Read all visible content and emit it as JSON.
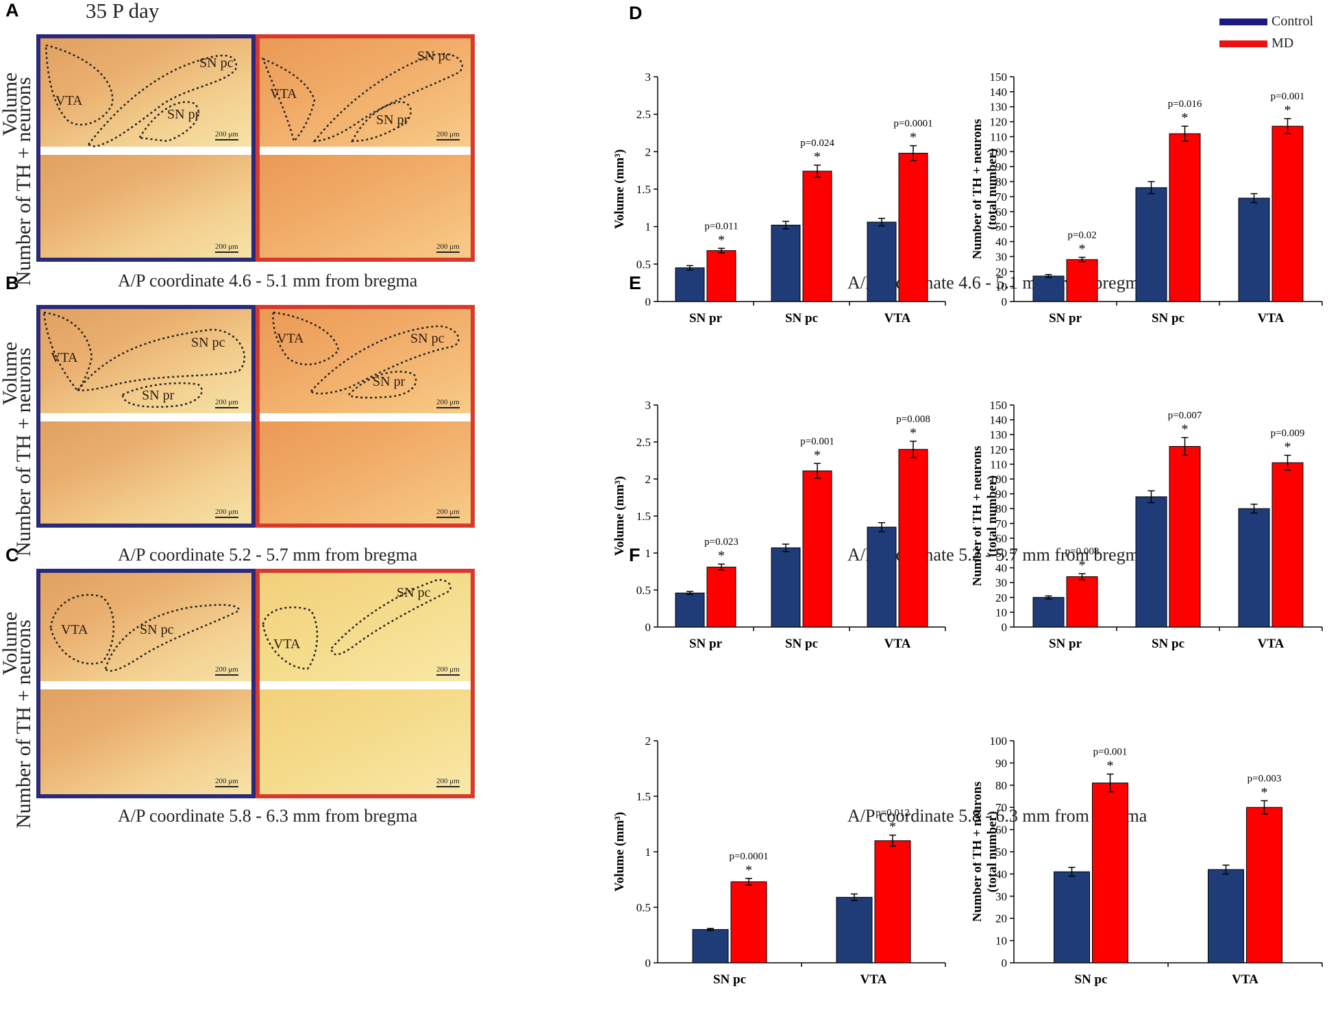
{
  "figure": {
    "panel_A_label": "A",
    "panel_B_label": "B",
    "panel_C_label": "C",
    "panel_D_label": "D",
    "panel_E_label": "E",
    "panel_F_label": "F",
    "day_label": "35 P day",
    "row_label_volume": "Volume",
    "row_label_neurons": "Number of TH + neurons",
    "scale_bar": "200 μm",
    "coord_A": "A/P coordinate 4.6 - 5.1 mm from bregma",
    "coord_B": "A/P coordinate 5.2 - 5.7 mm from bregma",
    "coord_C": "A/P coordinate 5.8 - 6.3 mm from bregma",
    "region_vta": "VTA",
    "region_snpc": "SN pc",
    "region_snpr": "SN pr"
  },
  "legend": {
    "control": "Control",
    "md": "MD",
    "control_color": "#1f3c78",
    "md_color": "#ff0000"
  },
  "chart_data": [
    {
      "id": "D-volume",
      "type": "bar",
      "ylabel": "Volume (mm³)",
      "ylim": [
        0,
        3
      ],
      "yticks": [
        0,
        0.5,
        1,
        1.5,
        2,
        2.5,
        3
      ],
      "categories": [
        "SN pr",
        "SN pc",
        "VTA"
      ],
      "series": [
        {
          "name": "Control",
          "values": [
            0.45,
            1.02,
            1.06
          ],
          "errors": [
            0.03,
            0.05,
            0.05
          ]
        },
        {
          "name": "MD",
          "values": [
            0.68,
            1.74,
            1.98
          ],
          "errors": [
            0.03,
            0.08,
            0.1
          ]
        }
      ],
      "annotations": [
        "p=0.011",
        "p=0.024",
        "p=0.0001"
      ]
    },
    {
      "id": "D-neurons",
      "type": "bar",
      "ylabel": "Number of TH + neurons (total number)",
      "ylim": [
        0,
        150
      ],
      "yticks": [
        0,
        10,
        20,
        30,
        40,
        50,
        60,
        70,
        80,
        90,
        100,
        110,
        120,
        130,
        140,
        150
      ],
      "categories": [
        "SN pr",
        "SN pc",
        "VTA"
      ],
      "series": [
        {
          "name": "Control",
          "values": [
            17,
            76,
            69
          ],
          "errors": [
            1,
            4,
            3
          ]
        },
        {
          "name": "MD",
          "values": [
            28,
            112,
            117
          ],
          "errors": [
            1.5,
            5,
            5
          ]
        }
      ],
      "annotations": [
        "p=0.02",
        "p=0.016",
        "p=0.001"
      ]
    },
    {
      "id": "E-volume",
      "type": "bar",
      "ylabel": "Volume (mm³)",
      "ylim": [
        0,
        3
      ],
      "yticks": [
        0,
        0.5,
        1,
        1.5,
        2,
        2.5,
        3
      ],
      "categories": [
        "SN pr",
        "SN pc",
        "VTA"
      ],
      "series": [
        {
          "name": "Control",
          "values": [
            0.46,
            1.07,
            1.35
          ],
          "errors": [
            0.02,
            0.05,
            0.06
          ]
        },
        {
          "name": "MD",
          "values": [
            0.81,
            2.11,
            2.4
          ],
          "errors": [
            0.04,
            0.1,
            0.11
          ]
        }
      ],
      "annotations": [
        "p=0.023",
        "p=0.001",
        "p=0.008"
      ]
    },
    {
      "id": "E-neurons",
      "type": "bar",
      "ylabel": "Number of TH + neurons (total number)",
      "ylim": [
        0,
        150
      ],
      "yticks": [
        0,
        10,
        20,
        30,
        40,
        50,
        60,
        70,
        80,
        90,
        100,
        110,
        120,
        130,
        140,
        150
      ],
      "categories": [
        "SN pr",
        "SN pc",
        "VTA"
      ],
      "series": [
        {
          "name": "Control",
          "values": [
            20,
            88,
            80
          ],
          "errors": [
            1,
            4,
            3
          ]
        },
        {
          "name": "MD",
          "values": [
            34,
            122,
            111
          ],
          "errors": [
            2,
            6,
            5
          ]
        }
      ],
      "annotations": [
        "p=0.008",
        "p=0.007",
        "p=0.009"
      ]
    },
    {
      "id": "F-volume",
      "type": "bar",
      "ylabel": "Volume (mm³)",
      "ylim": [
        0,
        2
      ],
      "yticks": [
        0,
        0.5,
        1,
        1.5,
        2
      ],
      "categories": [
        "SN pc",
        "VTA"
      ],
      "series": [
        {
          "name": "Control",
          "values": [
            0.3,
            0.59
          ],
          "errors": [
            0.01,
            0.03
          ]
        },
        {
          "name": "MD",
          "values": [
            0.73,
            1.1
          ],
          "errors": [
            0.03,
            0.05
          ]
        }
      ],
      "annotations": [
        "p=0.0001",
        "p=0.012"
      ]
    },
    {
      "id": "F-neurons",
      "type": "bar",
      "ylabel": "Number of TH + neurons (total number)",
      "ylim": [
        0,
        100
      ],
      "yticks": [
        0,
        10,
        20,
        30,
        40,
        50,
        60,
        70,
        80,
        90,
        100
      ],
      "categories": [
        "SN pc",
        "VTA"
      ],
      "series": [
        {
          "name": "Control",
          "values": [
            41,
            42
          ],
          "errors": [
            2,
            2
          ]
        },
        {
          "name": "MD",
          "values": [
            81,
            70
          ],
          "errors": [
            4,
            3
          ]
        }
      ],
      "annotations": [
        "p=0.001",
        "p=0.003"
      ]
    }
  ]
}
